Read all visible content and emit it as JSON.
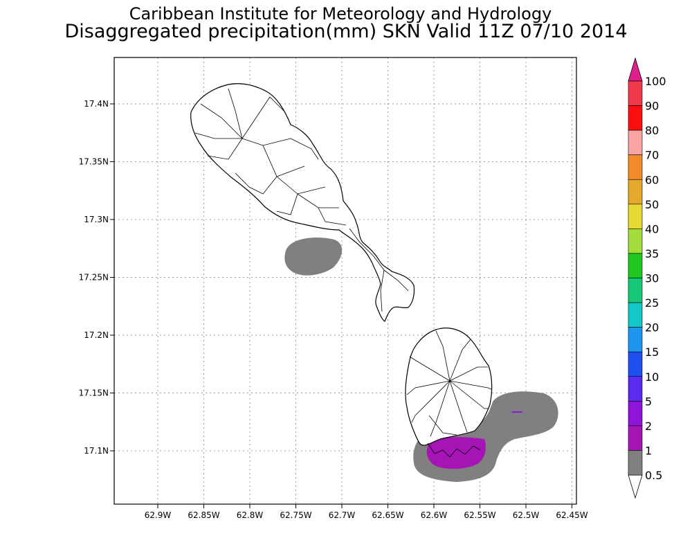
{
  "title": {
    "line1": "Caribbean Institute for Meteorology and Hydrology",
    "line2": "Disaggregated precipitation(mm) SKN Valid 11Z 07/10 2014"
  },
  "axes": {
    "x_ticks": [
      "62.9W",
      "62.85W",
      "62.8W",
      "62.75W",
      "62.7W",
      "62.65W",
      "62.6W",
      "62.55W",
      "62.5W",
      "62.45W"
    ],
    "y_ticks": [
      "17.4N",
      "17.35N",
      "17.3N",
      "17.25N",
      "17.2N",
      "17.15N",
      "17.1N"
    ]
  },
  "colorbar": {
    "labels": [
      "100",
      "90",
      "80",
      "70",
      "60",
      "50",
      "40",
      "35",
      "30",
      "25",
      "20",
      "15",
      "10",
      "5",
      "2",
      "1",
      "0.5"
    ],
    "colors": [
      "#ee3a4b",
      "#fb0e0e",
      "#f9a4a4",
      "#f08a2b",
      "#e3aa2d",
      "#e6d934",
      "#a3dd3b",
      "#1ec81e",
      "#14c878",
      "#12c8c8",
      "#1e96f0",
      "#1e50f0",
      "#5a2cf0",
      "#8e16d8",
      "#a514b4",
      "#808080"
    ],
    "top_arrow_color": "#e0208a",
    "bottom_arrow_color": "#ffffff"
  },
  "precip_colors": {
    "gray_1mm": "#808080",
    "purple_2mm": "#a514b4",
    "magenta_5mm": "#8e16d8"
  }
}
